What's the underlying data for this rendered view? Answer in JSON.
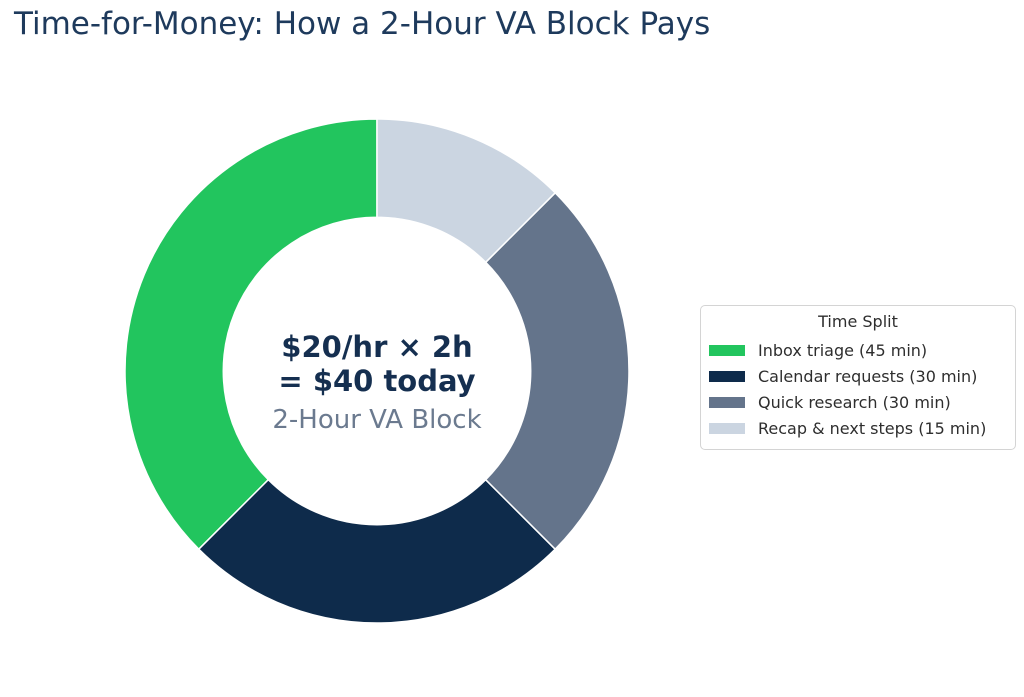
{
  "chart_data": {
    "type": "pie",
    "subtype": "donut",
    "title": "Time-for-Money: How a 2-Hour VA Block Pays",
    "legend_title": "Time Split",
    "legend_position": "right",
    "labels": [
      "Inbox triage (45 min)",
      "Calendar requests (30 min)",
      "Quick research (30 min)",
      "Recap & next steps (15 min)"
    ],
    "values": [
      45,
      30,
      30,
      15
    ],
    "unit": "min",
    "total_minutes": 120,
    "colors": [
      "#22c55e",
      "#0e2b4b",
      "#64748b",
      "#cbd5e1"
    ],
    "start_angle_deg": 90,
    "counterclockwise": true,
    "donut_hole_ratio": 0.61,
    "center_text": {
      "line1": "$20/hr × 2h",
      "line2": "= $40 today",
      "subtitle": "2-Hour VA Block"
    },
    "theme": {
      "background": "#ffffff",
      "title_color": "#1e3a5c",
      "center_text_color": "#152f50",
      "center_subtitle_color": "#6b7a8f",
      "legend_text_color": "#2e2e2e",
      "legend_border_color": "#d4d4d4",
      "wedge_edge_color": "#ffffff"
    }
  }
}
